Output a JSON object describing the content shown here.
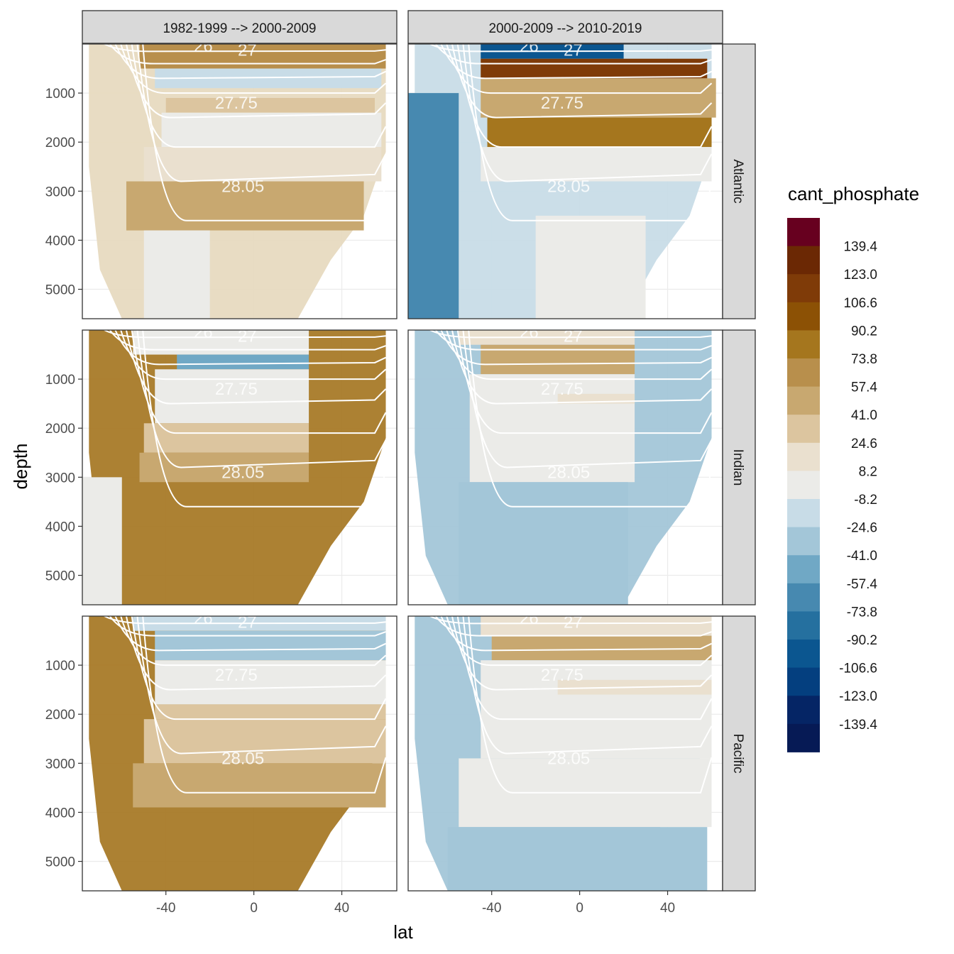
{
  "chart_data": {
    "type": "heatmap",
    "title": "",
    "xlabel": "lat",
    "ylabel": "depth",
    "x_ticks": [
      -40,
      0,
      40
    ],
    "y_ticks": [
      1000,
      2000,
      3000,
      4000,
      5000
    ],
    "xlim": [
      -78,
      65
    ],
    "ylim": [
      5600,
      0
    ],
    "columns": [
      "1982-1999 --> 2000-2009",
      "2000-2009 --> 2010-2019"
    ],
    "rows": [
      "Atlantic",
      "Indian",
      "Pacific"
    ],
    "legend": {
      "title": "cant_phosphate",
      "labels": [
        "139.4",
        "123.0",
        "106.6",
        "90.2",
        "73.8",
        "57.4",
        "41.0",
        "24.6",
        "8.2",
        "-8.2",
        "-24.6",
        "-41.0",
        "-57.4",
        "-73.8",
        "-90.2",
        "-106.6",
        "-123.0",
        "-139.4"
      ],
      "colors": [
        "#67001f",
        "#6b2804",
        "#7f3b08",
        "#8c5105",
        "#a5761e",
        "#b88f4c",
        "#c8a870",
        "#dcc59f",
        "#eae0cf",
        "#ebebe8",
        "#c8dce7",
        "#a3c6d8",
        "#70a8c5",
        "#4789b0",
        "#25709f",
        "#0b5690",
        "#043f7f",
        "#052565",
        "#061a55"
      ],
      "placement": "right"
    },
    "contour_labels": [
      "26",
      "27",
      "27.75",
      "28.05"
    ],
    "panels": [
      {
        "column": "1982-1999 --> 2000-2009",
        "row": "Atlantic",
        "bg": "#e7dac0",
        "bands": [
          {
            "y_top": 0,
            "y_bot": 500,
            "lat_start": -52,
            "lat_end": 60,
            "value": 60
          },
          {
            "y_top": 500,
            "y_bot": 900,
            "lat_start": -45,
            "lat_end": 58,
            "value": -15
          },
          {
            "y_top": 1100,
            "y_bot": 1400,
            "lat_start": -40,
            "lat_end": 55,
            "value": 25
          },
          {
            "y_top": 1400,
            "y_bot": 2100,
            "lat_start": -42,
            "lat_end": 58,
            "value": 0
          },
          {
            "y_top": 2100,
            "y_bot": 2800,
            "lat_start": -50,
            "lat_end": 58,
            "value": 20
          },
          {
            "y_top": 2800,
            "y_bot": 3800,
            "lat_start": -58,
            "lat_end": 50,
            "value": 45
          },
          {
            "y_top": 3800,
            "y_bot": 5600,
            "lat_start": -50,
            "lat_end": -20,
            "value": 0
          }
        ]
      },
      {
        "column": "2000-2009 --> 2010-2019",
        "row": "Atlantic",
        "bg": "#c8dce7",
        "bands": [
          {
            "y_top": 0,
            "y_bot": 300,
            "lat_start": -45,
            "lat_end": 20,
            "value": -95
          },
          {
            "y_top": 300,
            "y_bot": 700,
            "lat_start": -45,
            "lat_end": 58,
            "value": 120
          },
          {
            "y_top": 700,
            "y_bot": 1500,
            "lat_start": -45,
            "lat_end": 62,
            "value": 50
          },
          {
            "y_top": 1500,
            "y_bot": 2100,
            "lat_start": -42,
            "lat_end": 60,
            "value": 80
          },
          {
            "y_top": 2100,
            "y_bot": 2800,
            "lat_start": -45,
            "lat_end": 60,
            "value": 0
          },
          {
            "y_top": 1000,
            "y_bot": 5600,
            "lat_start": -78,
            "lat_end": -55,
            "value": -60
          },
          {
            "y_top": 3500,
            "y_bot": 5600,
            "lat_start": -20,
            "lat_end": 30,
            "value": 0
          }
        ]
      },
      {
        "column": "1982-1999 --> 2000-2009",
        "row": "Indian",
        "bg": "#a87a28",
        "bands": [
          {
            "y_top": 0,
            "y_bot": 500,
            "lat_start": -55,
            "lat_end": 25,
            "value": 0
          },
          {
            "y_top": 500,
            "y_bot": 800,
            "lat_start": -35,
            "lat_end": 25,
            "value": -55
          },
          {
            "y_top": 800,
            "y_bot": 1900,
            "lat_start": -45,
            "lat_end": 25,
            "value": 0
          },
          {
            "y_top": 1900,
            "y_bot": 2500,
            "lat_start": -50,
            "lat_end": 25,
            "value": 30
          },
          {
            "y_top": 2500,
            "y_bot": 3100,
            "lat_start": -52,
            "lat_end": 25,
            "value": 55
          },
          {
            "y_top": 3000,
            "y_bot": 5600,
            "lat_start": -78,
            "lat_end": -60,
            "value": 0
          }
        ]
      },
      {
        "column": "2000-2009 --> 2010-2019",
        "row": "Indian",
        "bg": "#a3c6d8",
        "bands": [
          {
            "y_top": 0,
            "y_bot": 300,
            "lat_start": -55,
            "lat_end": 25,
            "value": 10
          },
          {
            "y_top": 300,
            "y_bot": 900,
            "lat_start": -45,
            "lat_end": 25,
            "value": 55
          },
          {
            "y_top": 900,
            "y_bot": 3100,
            "lat_start": -50,
            "lat_end": 25,
            "value": 0
          },
          {
            "y_top": 1300,
            "y_bot": 1500,
            "lat_start": -10,
            "lat_end": 25,
            "value": 20
          },
          {
            "y_top": 3100,
            "y_bot": 5600,
            "lat_start": -55,
            "lat_end": 22,
            "value": -30
          }
        ]
      },
      {
        "column": "1982-1999 --> 2000-2009",
        "row": "Pacific",
        "bg": "#a87a28",
        "bands": [
          {
            "y_top": 0,
            "y_bot": 300,
            "lat_start": -55,
            "lat_end": 60,
            "value": -20
          },
          {
            "y_top": 300,
            "y_bot": 900,
            "lat_start": -45,
            "lat_end": 60,
            "value": -40
          },
          {
            "y_top": 900,
            "y_bot": 1800,
            "lat_start": -45,
            "lat_end": 60,
            "value": 0
          },
          {
            "y_top": 1800,
            "y_bot": 2100,
            "lat_start": -45,
            "lat_end": 60,
            "value": 25
          },
          {
            "y_top": 2100,
            "y_bot": 3000,
            "lat_start": -50,
            "lat_end": 60,
            "value": 40
          },
          {
            "y_top": 3000,
            "y_bot": 3900,
            "lat_start": -55,
            "lat_end": 60,
            "value": 55
          }
        ]
      },
      {
        "column": "2000-2009 --> 2010-2019",
        "row": "Pacific",
        "bg": "#a3c6d8",
        "bands": [
          {
            "y_top": 0,
            "y_bot": 400,
            "lat_start": -45,
            "lat_end": 60,
            "value": 15
          },
          {
            "y_top": 400,
            "y_bot": 900,
            "lat_start": -40,
            "lat_end": 60,
            "value": 55
          },
          {
            "y_top": 900,
            "y_bot": 2900,
            "lat_start": -45,
            "lat_end": 60,
            "value": 0
          },
          {
            "y_top": 1300,
            "y_bot": 1600,
            "lat_start": -10,
            "lat_end": 60,
            "value": 20
          },
          {
            "y_top": 2900,
            "y_bot": 4300,
            "lat_start": -55,
            "lat_end": 60,
            "value": 0
          },
          {
            "y_top": 4300,
            "y_bot": 5600,
            "lat_start": -60,
            "lat_end": 58,
            "value": -30
          }
        ]
      }
    ]
  }
}
